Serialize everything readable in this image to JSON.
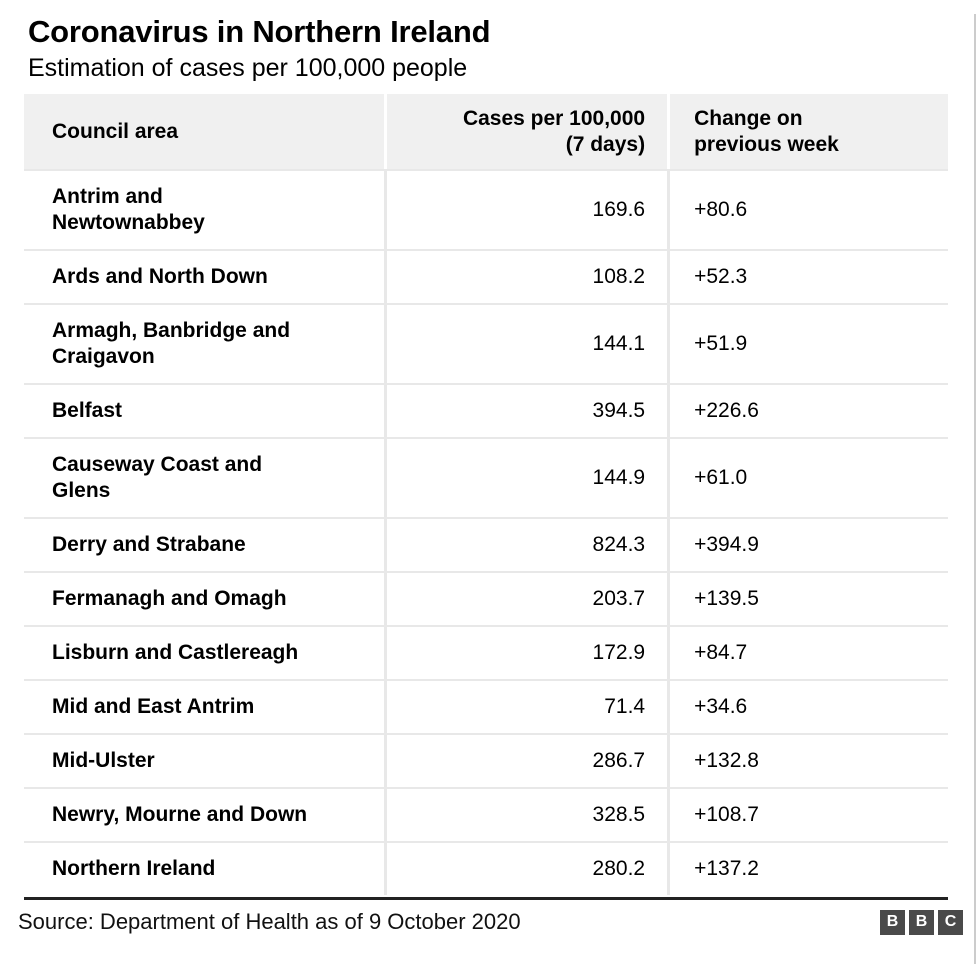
{
  "header": {
    "title": "Coronavirus in Northern Ireland",
    "subtitle": "Estimation of cases per 100,000 people"
  },
  "table": {
    "columns": [
      {
        "label": "Council area"
      },
      {
        "label": "Cases per 100,000\n(7 days)"
      },
      {
        "label": "Change on\nprevious week"
      }
    ],
    "rows": [
      {
        "area": "Antrim and\nNewtownabbey",
        "cases": "169.6",
        "change": "+80.6"
      },
      {
        "area": "Ards and North Down",
        "cases": "108.2",
        "change": "+52.3"
      },
      {
        "area": "Armagh, Banbridge and\nCraigavon",
        "cases": "144.1",
        "change": "+51.9"
      },
      {
        "area": "Belfast",
        "cases": "394.5",
        "change": "+226.6"
      },
      {
        "area": "Causeway Coast and\nGlens",
        "cases": "144.9",
        "change": "+61.0"
      },
      {
        "area": "Derry and Strabane",
        "cases": "824.3",
        "change": "+394.9"
      },
      {
        "area": "Fermanagh and Omagh",
        "cases": "203.7",
        "change": "+139.5"
      },
      {
        "area": "Lisburn and Castlereagh",
        "cases": "172.9",
        "change": "+84.7"
      },
      {
        "area": "Mid and East Antrim",
        "cases": "71.4",
        "change": "+34.6"
      },
      {
        "area": "Mid-Ulster",
        "cases": "286.7",
        "change": "+132.8"
      },
      {
        "area": "Newry, Mourne and Down",
        "cases": "328.5",
        "change": "+108.7"
      },
      {
        "area": "Northern Ireland",
        "cases": "280.2",
        "change": "+137.2"
      }
    ]
  },
  "footer": {
    "source": "Source: Department of Health as of 9 October 2020",
    "logo_letters": [
      "B",
      "B",
      "C"
    ]
  },
  "colors": {
    "header_bg": "#f0f0f0",
    "grid_line": "#e8e8e8",
    "footer_rule": "#222222",
    "logo_square": "#4a4a4a",
    "text": "#000000"
  },
  "chart_data": {
    "type": "table",
    "title": "Coronavirus in Northern Ireland",
    "subtitle": "Estimation of cases per 100,000 people",
    "columns": [
      "Council area",
      "Cases per 100,000 (7 days)",
      "Change on previous week"
    ],
    "rows": [
      [
        "Antrim and Newtownabbey",
        169.6,
        "+80.6"
      ],
      [
        "Ards and North Down",
        108.2,
        "+52.3"
      ],
      [
        "Armagh, Banbridge and Craigavon",
        144.1,
        "+51.9"
      ],
      [
        "Belfast",
        394.5,
        "+226.6"
      ],
      [
        "Causeway Coast and Glens",
        144.9,
        "+61.0"
      ],
      [
        "Derry and Strabane",
        824.3,
        "+394.9"
      ],
      [
        "Fermanagh and Omagh",
        203.7,
        "+139.5"
      ],
      [
        "Lisburn and Castlereagh",
        172.9,
        "+84.7"
      ],
      [
        "Mid and East Antrim",
        71.4,
        "+34.6"
      ],
      [
        "Mid-Ulster",
        286.7,
        "+132.8"
      ],
      [
        "Newry, Mourne and Down",
        328.5,
        "+108.7"
      ],
      [
        "Northern Ireland",
        280.2,
        "+137.2"
      ]
    ],
    "source": "Source: Department of Health as of 9 October 2020"
  }
}
